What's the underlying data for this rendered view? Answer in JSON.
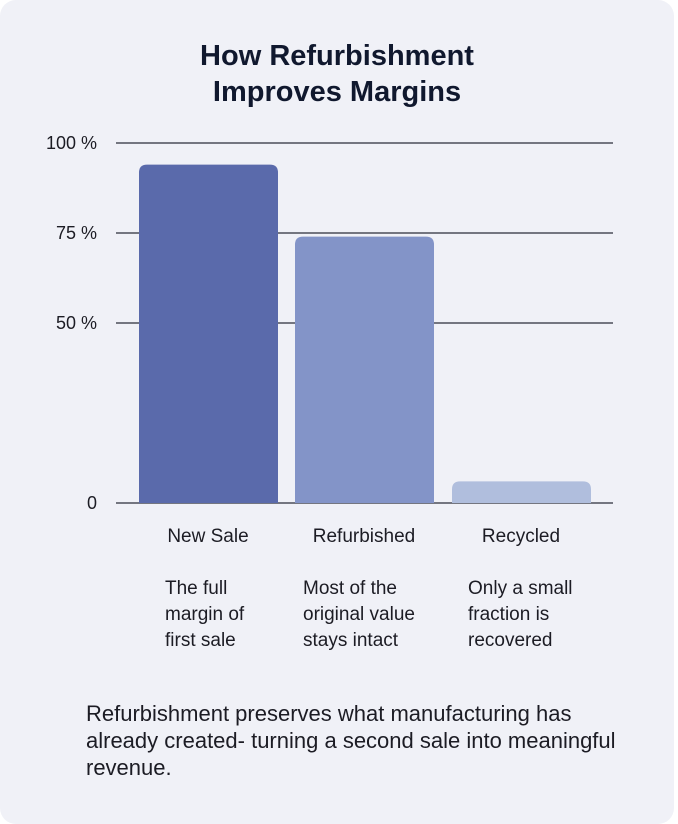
{
  "chart_data": {
    "type": "bar",
    "title": [
      "How Refurbishment",
      "Improves Margins"
    ],
    "categories": [
      "New Sale",
      "Refurbished",
      "Recycled"
    ],
    "values": [
      94,
      74,
      6
    ],
    "descriptions": [
      [
        "The full",
        "margin of",
        "first sale"
      ],
      [
        "Most of the",
        "original value",
        "stays intact"
      ],
      [
        "Only a small",
        "fraction is",
        "recovered"
      ]
    ],
    "y_ticks": [
      {
        "value": 0,
        "label": "0"
      },
      {
        "value": 50,
        "label": "50 %"
      },
      {
        "value": 75,
        "label": "75 %"
      },
      {
        "value": 100,
        "label": "100 %"
      }
    ],
    "ylim": [
      0,
      100
    ],
    "grid": true,
    "colors": [
      "#5a6aab",
      "#8394c8",
      "#b0bedd"
    ]
  },
  "footer": "Refurbishment preserves what manufacturing has already created- turning a second sale into meaningful revenue."
}
